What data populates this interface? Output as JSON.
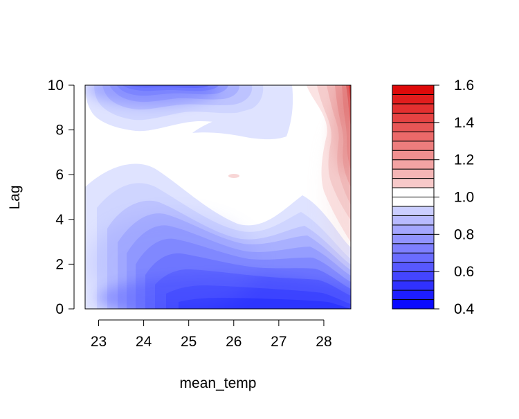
{
  "chart_data": {
    "type": "heatmap",
    "subtype": "filled-contour",
    "title": "",
    "xlabel": "mean_temp",
    "ylabel": "Lag",
    "xlim": [
      22.7,
      28.6
    ],
    "ylim": [
      0,
      10
    ],
    "x_ticks": [
      "23",
      "24",
      "25",
      "26",
      "27",
      "28"
    ],
    "y_ticks": [
      "0",
      "2",
      "4",
      "6",
      "8",
      "10"
    ],
    "grid": false,
    "colorbar": {
      "range": [
        0.4,
        1.6
      ],
      "step": 0.05,
      "tick_labels": [
        "0.4",
        "0.6",
        "0.8",
        "1.0",
        "1.2",
        "1.4",
        "1.6"
      ],
      "low_color": "#0000ff",
      "mid_color": "#ffffff",
      "high_color": "#dd0000",
      "white_band": [
        0.95,
        1.05
      ]
    },
    "regions": [
      {
        "x": 22.8,
        "y": 0.0,
        "z": 1.0
      },
      {
        "x": 23.0,
        "y": 0.0,
        "z": 0.9
      },
      {
        "x": 23.3,
        "y": 0.0,
        "z": 0.8
      },
      {
        "x": 23.6,
        "y": 0.0,
        "z": 0.7
      },
      {
        "x": 24.0,
        "y": 0.0,
        "z": 0.6
      },
      {
        "x": 24.6,
        "y": 0.0,
        "z": 0.5
      },
      {
        "x": 26.0,
        "y": 0.0,
        "z": 0.42
      },
      {
        "x": 27.5,
        "y": 0.0,
        "z": 0.45
      },
      {
        "x": 28.5,
        "y": 0.0,
        "z": 0.6
      },
      {
        "x": 23.2,
        "y": 2.0,
        "z": 0.85
      },
      {
        "x": 24.0,
        "y": 2.0,
        "z": 0.65
      },
      {
        "x": 25.0,
        "y": 2.0,
        "z": 0.62
      },
      {
        "x": 26.0,
        "y": 2.0,
        "z": 0.7
      },
      {
        "x": 27.0,
        "y": 2.0,
        "z": 0.7
      },
      {
        "x": 28.0,
        "y": 2.0,
        "z": 0.85
      },
      {
        "x": 28.5,
        "y": 2.0,
        "z": 0.92
      },
      {
        "x": 24.0,
        "y": 4.0,
        "z": 0.8
      },
      {
        "x": 25.0,
        "y": 4.0,
        "z": 0.82
      },
      {
        "x": 26.0,
        "y": 4.0,
        "z": 0.95
      },
      {
        "x": 27.0,
        "y": 4.0,
        "z": 0.9
      },
      {
        "x": 28.2,
        "y": 4.0,
        "z": 1.05
      },
      {
        "x": 28.5,
        "y": 5.0,
        "z": 1.15
      },
      {
        "x": 24.0,
        "y": 6.0,
        "z": 0.95
      },
      {
        "x": 26.0,
        "y": 6.0,
        "z": 1.0
      },
      {
        "x": 28.5,
        "y": 7.0,
        "z": 1.1
      },
      {
        "x": 23.0,
        "y": 8.0,
        "z": 0.92
      },
      {
        "x": 24.5,
        "y": 8.0,
        "z": 0.85
      },
      {
        "x": 26.0,
        "y": 8.0,
        "z": 0.88
      },
      {
        "x": 27.0,
        "y": 8.0,
        "z": 0.93
      },
      {
        "x": 23.5,
        "y": 10.0,
        "z": 0.7
      },
      {
        "x": 24.5,
        "y": 10.0,
        "z": 0.45
      },
      {
        "x": 25.5,
        "y": 10.0,
        "z": 0.6
      },
      {
        "x": 26.5,
        "y": 10.0,
        "z": 0.8
      },
      {
        "x": 27.5,
        "y": 10.0,
        "z": 0.95
      },
      {
        "x": 28.5,
        "y": 10.0,
        "z": 1.6
      }
    ]
  }
}
